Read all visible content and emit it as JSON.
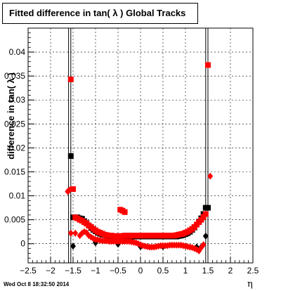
{
  "title": "Fitted difference in tan( λ )  Global Tracks",
  "timestamp": "Wed Oct  8 18:32:50 2014",
  "chart_data": {
    "type": "scatter",
    "title": "Fitted difference in tan( λ )  Global Tracks",
    "xlabel": "η",
    "ylabel": "difference in tan( λ )",
    "xlim": [
      -2.5,
      2.5
    ],
    "ylim": [
      -0.004,
      0.045
    ],
    "grid": true,
    "x_ticks": [
      "-2.5",
      "-2",
      "-1.5",
      "-1",
      "-0.5",
      "0",
      "0.5",
      "1",
      "1.5",
      "2",
      "2.5"
    ],
    "y_ticks": [
      "0",
      "0.005",
      "0.01",
      "0.015",
      "0.02",
      "0.025",
      "0.03",
      "0.035",
      "0.04"
    ],
    "series": [
      {
        "marker": "square",
        "color": "#000000",
        "points": [
          [
            -1.55,
            0.0183
          ],
          [
            -1.5,
            0.0055
          ],
          [
            -1.45,
            0.0055
          ],
          [
            -1.4,
            0.0055
          ],
          [
            -1.35,
            0.0053
          ],
          [
            -1.3,
            0.0052
          ],
          [
            -1.25,
            0.0047
          ],
          [
            -1.2,
            0.0043
          ],
          [
            -1.15,
            0.0038
          ],
          [
            -1.1,
            0.0033
          ],
          [
            -1.05,
            0.0029
          ],
          [
            -1.0,
            0.0026
          ],
          [
            -0.95,
            0.0023
          ],
          [
            -0.9,
            0.0021
          ],
          [
            -0.85,
            0.0019
          ],
          [
            -0.8,
            0.0018
          ],
          [
            -0.75,
            0.0017
          ],
          [
            -0.7,
            0.0016
          ],
          [
            -0.65,
            0.0016
          ],
          [
            -0.6,
            0.0015
          ],
          [
            -0.55,
            0.0015
          ],
          [
            -0.5,
            0.0015
          ],
          [
            -0.45,
            0.0014
          ],
          [
            -0.4,
            0.0014
          ],
          [
            -0.35,
            0.0014
          ],
          [
            -0.3,
            0.0014
          ],
          [
            -0.25,
            0.0014
          ],
          [
            -0.2,
            0.0014
          ],
          [
            -0.15,
            0.0015
          ],
          [
            -0.1,
            0.0015
          ],
          [
            -0.05,
            0.0015
          ],
          [
            0.0,
            0.0015
          ],
          [
            0.05,
            0.0015
          ],
          [
            0.1,
            0.0015
          ],
          [
            0.15,
            0.0015
          ],
          [
            0.2,
            0.0015
          ],
          [
            0.25,
            0.0015
          ],
          [
            0.3,
            0.0015
          ],
          [
            0.35,
            0.0015
          ],
          [
            0.4,
            0.0015
          ],
          [
            0.45,
            0.0015
          ],
          [
            0.5,
            0.0015
          ],
          [
            0.55,
            0.0015
          ],
          [
            0.6,
            0.0015
          ],
          [
            0.65,
            0.0015
          ],
          [
            0.7,
            0.0015
          ],
          [
            0.75,
            0.0015
          ],
          [
            0.8,
            0.0015
          ],
          [
            0.85,
            0.0016
          ],
          [
            0.9,
            0.0017
          ],
          [
            0.95,
            0.0018
          ],
          [
            1.0,
            0.002
          ],
          [
            1.05,
            0.0022
          ],
          [
            1.1,
            0.0025
          ],
          [
            1.15,
            0.0029
          ],
          [
            1.2,
            0.0034
          ],
          [
            1.25,
            0.004
          ],
          [
            1.3,
            0.0046
          ],
          [
            1.35,
            0.0053
          ],
          [
            1.4,
            0.0062
          ],
          [
            1.45,
            0.0075
          ],
          [
            1.5,
            0.0075
          ]
        ]
      },
      {
        "marker": "diamond",
        "color": "#000000",
        "points": [
          [
            -1.55,
            0.0022
          ],
          [
            -1.5,
            -0.0005
          ],
          [
            -1.0,
            0.0002
          ],
          [
            -0.5,
            -0.0001
          ],
          [
            0.0,
            -0.0006
          ],
          [
            0.5,
            -0.0006
          ],
          [
            1.0,
            -0.0005
          ],
          [
            1.25,
            -0.0007
          ],
          [
            1.35,
            -0.0007
          ],
          [
            1.45,
            0.0016
          ]
        ]
      },
      {
        "marker": "square",
        "color": "#ff0000",
        "points": [
          [
            -1.55,
            0.0343
          ],
          [
            -1.5,
            0.0114
          ],
          [
            -1.45,
            0.0055
          ],
          [
            -1.4,
            0.0053
          ],
          [
            -1.35,
            0.005
          ],
          [
            -1.3,
            0.0048
          ],
          [
            -1.25,
            0.0045
          ],
          [
            -1.2,
            0.0042
          ],
          [
            -1.15,
            0.0038
          ],
          [
            -1.1,
            0.0035
          ],
          [
            -1.05,
            0.0031
          ],
          [
            -1.0,
            0.0028
          ],
          [
            -0.95,
            0.0025
          ],
          [
            -0.9,
            0.0023
          ],
          [
            -0.85,
            0.0021
          ],
          [
            -0.8,
            0.0019
          ],
          [
            -0.75,
            0.0018
          ],
          [
            -0.7,
            0.0017
          ],
          [
            -0.65,
            0.0017
          ],
          [
            -0.6,
            0.0016
          ],
          [
            -0.55,
            0.0016
          ],
          [
            -0.5,
            0.0016
          ],
          [
            -0.45,
            0.0016
          ],
          [
            -0.4,
            0.0016
          ],
          [
            -0.35,
            0.0017
          ],
          [
            -0.3,
            0.0017
          ],
          [
            -0.25,
            0.0017
          ],
          [
            -0.2,
            0.0017
          ],
          [
            -0.15,
            0.0017
          ],
          [
            -0.1,
            0.0017
          ],
          [
            -0.05,
            0.0017
          ],
          [
            0.0,
            0.0017
          ],
          [
            0.05,
            0.0017
          ],
          [
            0.1,
            0.0017
          ],
          [
            0.15,
            0.0017
          ],
          [
            0.2,
            0.0017
          ],
          [
            0.25,
            0.0017
          ],
          [
            0.3,
            0.0017
          ],
          [
            0.35,
            0.0017
          ],
          [
            0.4,
            0.0017
          ],
          [
            0.45,
            0.0017
          ],
          [
            0.5,
            0.0017
          ],
          [
            0.55,
            0.0017
          ],
          [
            0.6,
            0.0017
          ],
          [
            0.65,
            0.0017
          ],
          [
            0.7,
            0.0017
          ],
          [
            0.75,
            0.0017
          ],
          [
            0.8,
            0.0018
          ],
          [
            0.85,
            0.0019
          ],
          [
            0.9,
            0.002
          ],
          [
            0.95,
            0.0021
          ],
          [
            1.0,
            0.0023
          ],
          [
            1.05,
            0.0025
          ],
          [
            1.1,
            0.0028
          ],
          [
            1.15,
            0.0031
          ],
          [
            1.2,
            0.0035
          ],
          [
            1.25,
            0.004
          ],
          [
            1.3,
            0.0045
          ],
          [
            1.35,
            0.005
          ],
          [
            1.4,
            0.0056
          ],
          [
            1.45,
            0.0062
          ],
          [
            1.5,
            0.0373
          ]
        ]
      },
      {
        "marker": "diamond",
        "color": "#ff0000",
        "points": [
          [
            -1.62,
            0.0109
          ],
          [
            -1.58,
            0.0112
          ],
          [
            -1.55,
            0.0022
          ],
          [
            -1.45,
            0.0022
          ],
          [
            -1.35,
            0.0017
          ],
          [
            -1.3,
            0.0022
          ],
          [
            -1.25,
            0.0025
          ],
          [
            -1.2,
            0.0023
          ],
          [
            -1.15,
            0.0017
          ],
          [
            -1.1,
            0.0014
          ],
          [
            -1.05,
            0.0011
          ],
          [
            -1.0,
            0.0009
          ],
          [
            -0.95,
            0.0008
          ],
          [
            -0.9,
            0.0007
          ],
          [
            -0.85,
            0.0006
          ],
          [
            -0.8,
            0.0006
          ],
          [
            -0.75,
            0.0006
          ],
          [
            -0.7,
            0.0005
          ],
          [
            -0.65,
            0.0005
          ],
          [
            -0.6,
            0.0005
          ],
          [
            -0.55,
            0.0005
          ],
          [
            -0.5,
            0.0005
          ],
          [
            -0.45,
            0.0005
          ],
          [
            -0.4,
            0.0005
          ],
          [
            -0.35,
            0.0005
          ],
          [
            -0.3,
            0.0005
          ],
          [
            -0.25,
            0.0005
          ],
          [
            -0.2,
            0.0004
          ],
          [
            -0.15,
            0.0003
          ],
          [
            -0.1,
            0.0002
          ],
          [
            -0.05,
            0.0
          ],
          [
            0.0,
            -0.0002
          ],
          [
            0.05,
            -0.0004
          ],
          [
            0.1,
            -0.0005
          ],
          [
            0.15,
            -0.0006
          ],
          [
            0.2,
            -0.0007
          ],
          [
            0.25,
            -0.0007
          ],
          [
            0.3,
            -0.0007
          ],
          [
            0.35,
            -0.0006
          ],
          [
            0.4,
            -0.0005
          ],
          [
            0.45,
            -0.0004
          ],
          [
            0.5,
            -0.0004
          ],
          [
            0.55,
            -0.0004
          ],
          [
            0.6,
            -0.0004
          ],
          [
            0.65,
            -0.0003
          ],
          [
            0.7,
            -0.0003
          ],
          [
            0.75,
            -0.0003
          ],
          [
            0.8,
            -0.0003
          ],
          [
            0.85,
            -0.0003
          ],
          [
            0.9,
            -0.0003
          ],
          [
            0.95,
            -0.0004
          ],
          [
            1.0,
            -0.0005
          ],
          [
            1.05,
            -0.0006
          ],
          [
            1.1,
            -0.0007
          ],
          [
            1.15,
            -0.0008
          ],
          [
            1.2,
            -0.001
          ],
          [
            1.25,
            -0.0012
          ],
          [
            1.3,
            -0.0015
          ],
          [
            1.35,
            -0.0008
          ],
          [
            1.4,
            -0.0002
          ],
          [
            1.55,
            0.0141
          ]
        ]
      },
      {
        "marker": "square",
        "color": "#ff0000",
        "points": [
          [
            -0.45,
            0.0071
          ],
          [
            -0.4,
            0.0069
          ],
          [
            -0.35,
            0.0066
          ]
        ]
      }
    ],
    "vertical_lines_x": [
      -1.6,
      -1.55,
      1.45,
      1.5
    ]
  }
}
